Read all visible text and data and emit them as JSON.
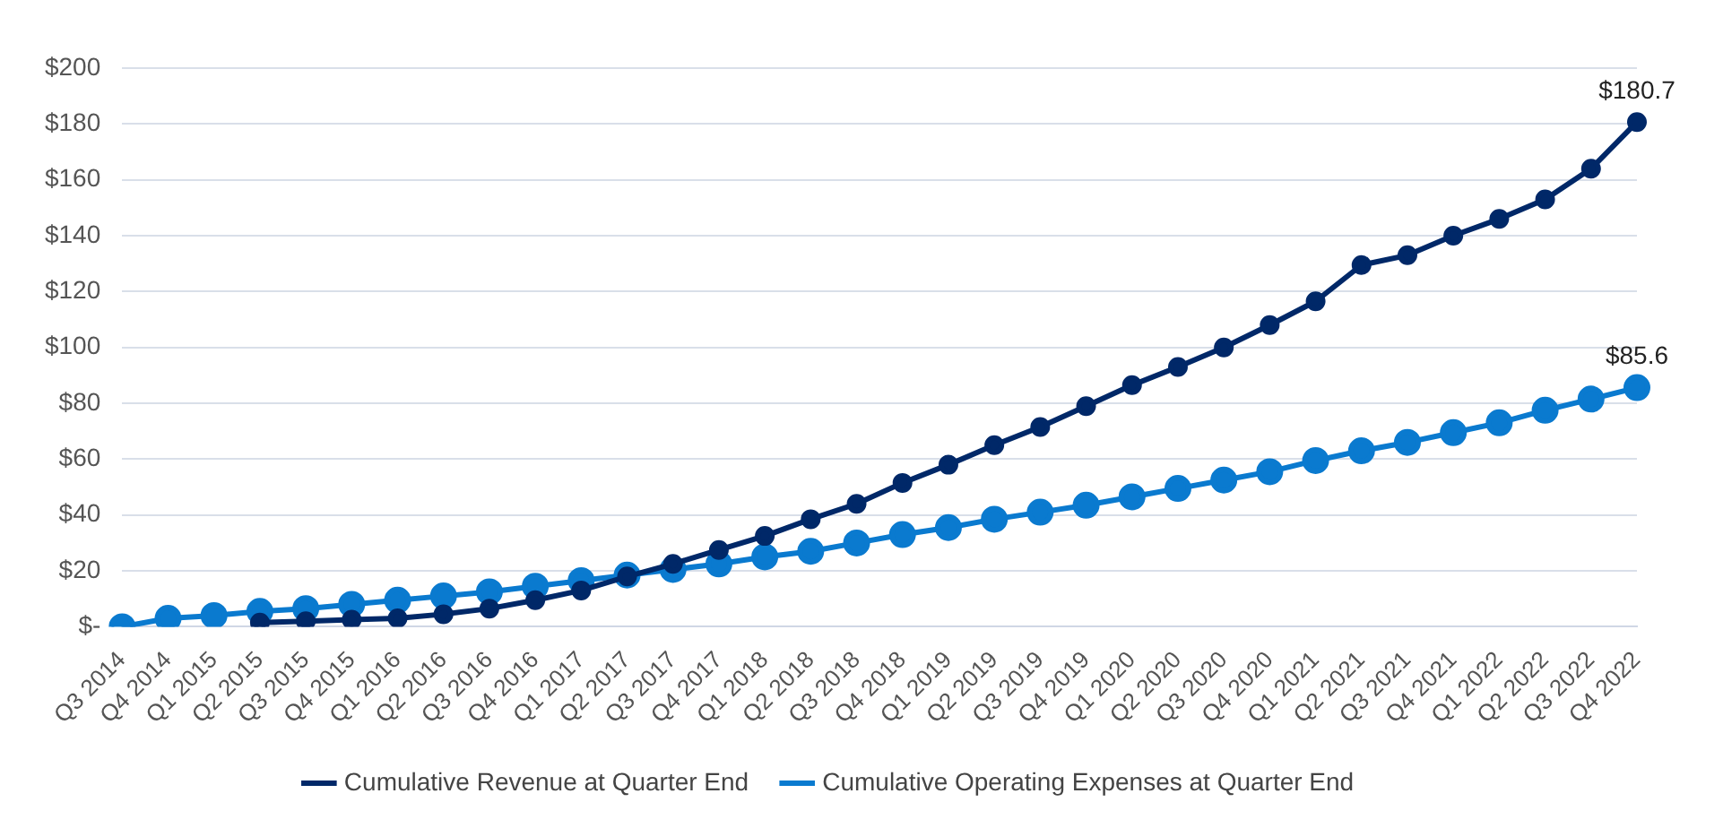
{
  "chart_data": {
    "type": "line",
    "categories": [
      "Q3 2014",
      "Q4 2014",
      "Q1 2015",
      "Q2 2015",
      "Q3 2015",
      "Q4 2015",
      "Q1 2016",
      "Q2 2016",
      "Q3 2016",
      "Q4 2016",
      "Q1 2017",
      "Q2 2017",
      "Q3 2017",
      "Q4 2017",
      "Q1 2018",
      "Q2 2018",
      "Q3 2018",
      "Q4 2018",
      "Q1 2019",
      "Q2 2019",
      "Q3 2019",
      "Q4 2019",
      "Q1 2020",
      "Q2 2020",
      "Q3 2020",
      "Q4 2020",
      "Q1 2021",
      "Q2 2021",
      "Q3 2021",
      "Q4 2021",
      "Q1 2022",
      "Q2 2022",
      "Q3 2022",
      "Q4 2022"
    ],
    "series": [
      {
        "name": "Cumulative Revenue at Quarter End",
        "color": "#002868",
        "values": [
          null,
          null,
          null,
          1.5,
          2,
          2.5,
          3,
          4.5,
          6.5,
          9.5,
          13,
          18,
          22.5,
          27.5,
          32.5,
          38.5,
          44,
          51.5,
          58,
          65,
          71.5,
          79,
          86.5,
          93,
          100,
          108,
          116.5,
          129.5,
          133,
          140,
          146,
          153,
          164,
          180.7
        ],
        "value_labels": [
          null,
          null,
          null,
          null,
          null,
          null,
          null,
          null,
          null,
          null,
          null,
          null,
          null,
          null,
          null,
          null,
          null,
          null,
          null,
          null,
          null,
          null,
          null,
          null,
          null,
          null,
          null,
          null,
          null,
          null,
          null,
          null,
          null,
          "$180.7"
        ]
      },
      {
        "name": "Cumulative Operating Expenses at Quarter End",
        "color": "#0a7acf",
        "values": [
          0,
          3,
          4,
          5.5,
          6.5,
          8,
          9.5,
          11,
          12.5,
          14.5,
          16.5,
          18.5,
          20.5,
          22.5,
          25,
          27,
          30,
          33,
          35.5,
          38.5,
          41,
          43.5,
          46.5,
          49.5,
          52.5,
          55.5,
          59.5,
          63,
          66,
          69.5,
          73,
          77.5,
          81.5,
          85.6
        ],
        "value_labels": [
          null,
          null,
          null,
          null,
          null,
          null,
          null,
          null,
          null,
          null,
          null,
          null,
          null,
          null,
          null,
          null,
          null,
          null,
          null,
          null,
          null,
          null,
          null,
          null,
          null,
          null,
          null,
          null,
          null,
          null,
          null,
          null,
          null,
          "$85.6"
        ]
      }
    ],
    "ylim": [
      0,
      200
    ],
    "yticks": [
      {
        "value": 0,
        "label": "$-"
      },
      {
        "value": 20,
        "label": "$20"
      },
      {
        "value": 40,
        "label": "$40"
      },
      {
        "value": 60,
        "label": "$60"
      },
      {
        "value": 80,
        "label": "$80"
      },
      {
        "value": 100,
        "label": "$100"
      },
      {
        "value": 120,
        "label": "$120"
      },
      {
        "value": 140,
        "label": "$140"
      },
      {
        "value": 160,
        "label": "$160"
      },
      {
        "value": 180,
        "label": "$180"
      },
      {
        "value": 200,
        "label": "$200"
      }
    ],
    "grid": "y",
    "legend": "bottom",
    "marker": "circle",
    "line_style": "solid"
  }
}
